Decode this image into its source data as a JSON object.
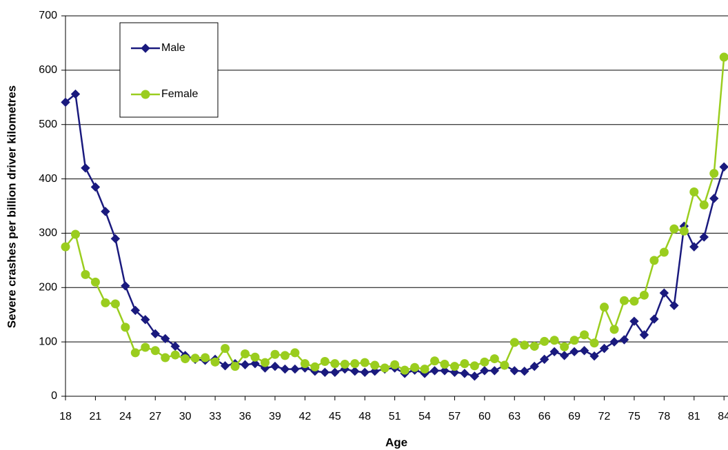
{
  "chart_data": {
    "type": "line",
    "x_label": "Age",
    "y_label": "Severe crashes per billion driver kilometres",
    "x": [
      18,
      19,
      20,
      21,
      22,
      23,
      24,
      25,
      26,
      27,
      28,
      29,
      30,
      31,
      32,
      33,
      34,
      35,
      36,
      37,
      38,
      39,
      40,
      41,
      42,
      43,
      44,
      45,
      46,
      47,
      48,
      49,
      50,
      51,
      52,
      53,
      54,
      55,
      56,
      57,
      58,
      59,
      60,
      61,
      62,
      63,
      64,
      65,
      66,
      67,
      68,
      69,
      70,
      71,
      72,
      73,
      74,
      75,
      76,
      77,
      78,
      79,
      80,
      81,
      82,
      83,
      84
    ],
    "series": [
      {
        "name": "Male",
        "color": "#1a1a7e",
        "marker": "diamond",
        "values": [
          541,
          556,
          420,
          385,
          340,
          290,
          203,
          158,
          141,
          115,
          106,
          92,
          75,
          68,
          66,
          68,
          56,
          60,
          58,
          60,
          52,
          55,
          50,
          50,
          52,
          46,
          44,
          44,
          50,
          46,
          44,
          46,
          50,
          52,
          42,
          48,
          42,
          47,
          47,
          44,
          42,
          37,
          47,
          47,
          57,
          47,
          46,
          55,
          68,
          82,
          75,
          82,
          84,
          74,
          88,
          100,
          104,
          138,
          113,
          142,
          190,
          167,
          313,
          275,
          293,
          364,
          422
        ]
      },
      {
        "name": "Female",
        "color": "#9acd1e",
        "marker": "circle",
        "values": [
          275,
          298,
          224,
          210,
          172,
          170,
          127,
          80,
          90,
          84,
          71,
          76,
          69,
          70,
          71,
          63,
          88,
          55,
          78,
          72,
          62,
          77,
          75,
          80,
          60,
          54,
          64,
          60,
          59,
          60,
          62,
          57,
          52,
          58,
          48,
          53,
          50,
          65,
          59,
          55,
          60,
          56,
          63,
          69,
          57,
          99,
          94,
          92,
          101,
          103,
          91,
          103,
          113,
          98,
          164,
          123,
          176,
          175,
          186,
          250,
          265,
          308,
          304,
          376,
          352,
          410,
          624
        ]
      }
    ],
    "xlim": [
      18,
      84.4
    ],
    "xticks": [
      18,
      21,
      24,
      27,
      30,
      33,
      36,
      39,
      42,
      45,
      48,
      51,
      54,
      57,
      60,
      63,
      66,
      69,
      72,
      75,
      78,
      81,
      84
    ],
    "ylim": [
      0,
      700
    ],
    "yticks": [
      0,
      100,
      200,
      300,
      400,
      500,
      600,
      700
    ],
    "grid": true
  }
}
